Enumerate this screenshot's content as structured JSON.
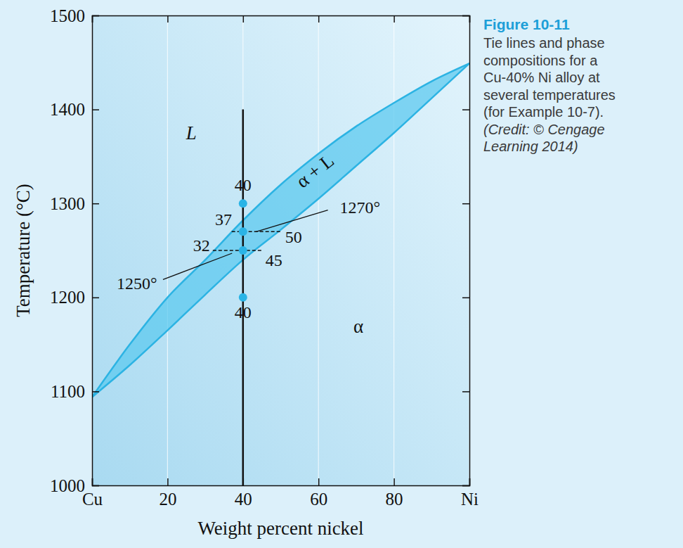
{
  "chart_data": {
    "type": "phase_diagram",
    "title": "Figure 10-11",
    "caption": [
      "Tie lines and phase",
      "compositions for a",
      "Cu-40% Ni alloy at",
      "several temperatures",
      "(for Example 10-7).",
      "(Credit: © Cengage",
      "Learning 2014)"
    ],
    "x_label": "Weight percent nickel",
    "y_label": "Temperature (°C)",
    "xlim": [
      0,
      100
    ],
    "ylim": [
      1000,
      1500
    ],
    "xticks": [
      {
        "value": 0,
        "label": "Cu"
      },
      20,
      40,
      60,
      80,
      {
        "value": 100,
        "label": "Ni"
      }
    ],
    "yticks": [
      1000,
      1100,
      1200,
      1300,
      1400,
      1500
    ],
    "grid": true,
    "series": [
      {
        "type": "line",
        "color": "#2cb3e3",
        "x": [
          0,
          10,
          20,
          30,
          40,
          50,
          60,
          70,
          80,
          90,
          100
        ],
        "values": [
          1094,
          1150,
          1200,
          1240,
          1282,
          1320,
          1353,
          1382,
          1407,
          1430,
          1449
        ]
      },
      {
        "type": "line",
        "color": "#2cb3e3",
        "x": [
          0,
          10,
          20,
          30,
          40,
          50,
          60,
          70,
          80,
          90,
          100
        ],
        "values": [
          1094,
          1128,
          1165,
          1203,
          1240,
          1272,
          1305,
          1340,
          1375,
          1412,
          1449
        ]
      }
    ],
    "regions": [
      {
        "text": "L",
        "x": 26.3,
        "y": 1373
      },
      {
        "text": "α + L",
        "x": 59.4,
        "y": 1333
      },
      {
        "text": "α",
        "x": 70.6,
        "y": 1167
      }
    ],
    "composition_line": {
      "x": [
        40,
        40
      ],
      "y": [
        1000,
        1400
      ]
    },
    "points": {
      "color": "#2ab4e6",
      "x": [
        40,
        40,
        40,
        40
      ],
      "values": [
        1300,
        1270,
        1250,
        1200
      ]
    },
    "tie_lines": [
      {
        "x": [
          37,
          50
        ],
        "y": [
          1270,
          1270
        ]
      },
      {
        "x": [
          32,
          45
        ],
        "y": [
          1250,
          1250
        ]
      }
    ],
    "annotations": [
      {
        "text": "40",
        "x": 40,
        "y": 1318
      },
      {
        "text": "37",
        "x": 34.8,
        "y": 1281
      },
      {
        "text": "50",
        "x": 53.4,
        "y": 1262
      },
      {
        "text": "32",
        "x": 29.0,
        "y": 1253
      },
      {
        "text": "45",
        "x": 48.2,
        "y": 1238
      },
      {
        "text": "40",
        "x": 40,
        "y": 1182
      },
      {
        "text": "1270°",
        "x": 71.0,
        "y": 1294,
        "line": {
          "x": [
            62.5,
            43.5
          ],
          "y": [
            1293,
            1270
          ]
        }
      },
      {
        "text": "1250°",
        "x": 11.9,
        "y": 1213,
        "line": {
          "x": [
            18.8,
            37.1
          ],
          "y": [
            1219,
            1247
          ]
        }
      }
    ]
  }
}
